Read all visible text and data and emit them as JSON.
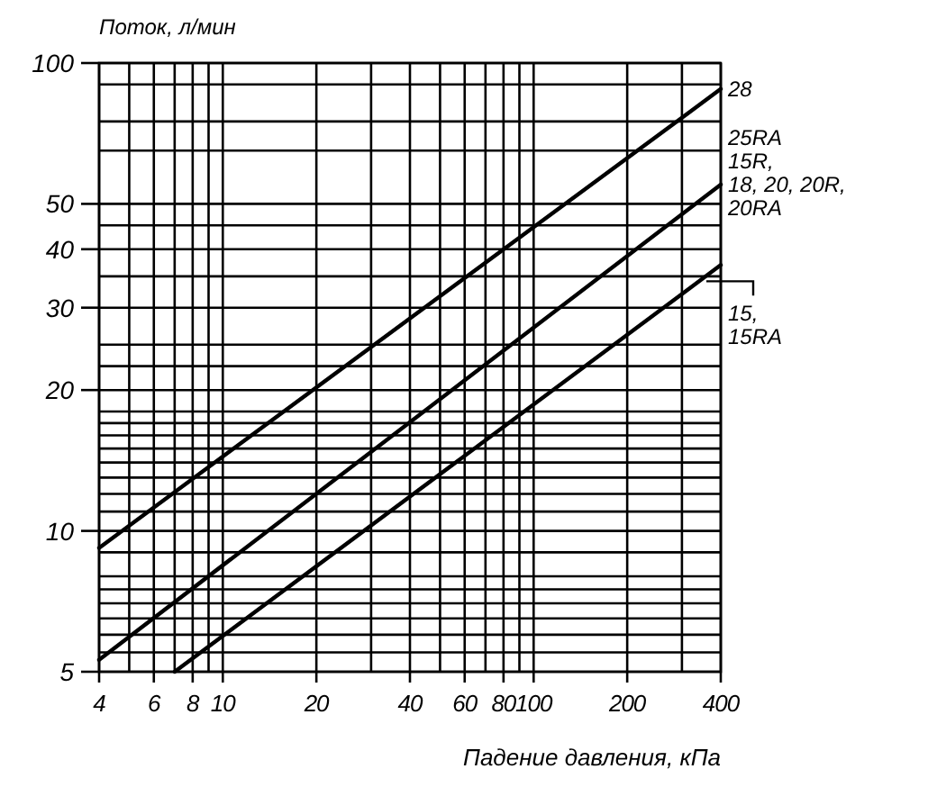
{
  "chart_data": {
    "type": "line",
    "xlabel": "Падение давления, кПа",
    "ylabel": "Поток, л/мин",
    "log": "xy",
    "grid": true,
    "marker": "none",
    "line_style": "solid",
    "xlim": [
      4,
      400
    ],
    "ylim": [
      5,
      100
    ],
    "xticks": [
      4,
      {
        "value": 5,
        "label": null
      },
      6,
      {
        "value": 7,
        "label": null
      },
      8,
      {
        "value": 9,
        "label": null
      },
      10,
      20,
      {
        "value": 30,
        "label": null
      },
      40,
      {
        "value": 50,
        "label": null
      },
      60,
      {
        "value": 70,
        "label": null
      },
      80,
      {
        "value": 90,
        "label": null
      },
      100,
      200,
      {
        "value": 300,
        "label": null
      },
      400
    ],
    "yticks": [
      5,
      {
        "value": 5.5,
        "label": null
      },
      {
        "value": 6,
        "label": null
      },
      {
        "value": 6.5,
        "label": null
      },
      {
        "value": 7,
        "label": null
      },
      {
        "value": 7.5,
        "label": null
      },
      {
        "value": 8,
        "label": null
      },
      {
        "value": 9,
        "label": null
      },
      10,
      {
        "value": 11,
        "label": null
      },
      {
        "value": 12,
        "label": null
      },
      {
        "value": 13,
        "label": null
      },
      {
        "value": 14,
        "label": null
      },
      {
        "value": 15,
        "label": null
      },
      {
        "value": 16,
        "label": null
      },
      {
        "value": 17,
        "label": null
      },
      {
        "value": 18,
        "label": null
      },
      20,
      {
        "value": 22.5,
        "label": null
      },
      {
        "value": 25,
        "label": null
      },
      30,
      {
        "value": 35,
        "label": null
      },
      40,
      {
        "value": 45,
        "label": null
      },
      50,
      {
        "value": 65,
        "label": null
      },
      {
        "value": 75,
        "label": null
      },
      {
        "value": 90,
        "label": null
      },
      100
    ],
    "series": [
      {
        "name": "28",
        "color": "#000000",
        "x": [
          4,
          400
        ],
        "values": [
          9.2,
          88
        ]
      },
      {
        "name": "25RA\n15R,\n18, 20, 20R,\n20RA",
        "color": "#000000",
        "x": [
          4,
          400
        ],
        "values": [
          5.3,
          55
        ]
      },
      {
        "name": "15,\n15RA",
        "color": "#000000",
        "x": [
          7,
          400
        ],
        "values": [
          5,
          37
        ]
      }
    ]
  }
}
